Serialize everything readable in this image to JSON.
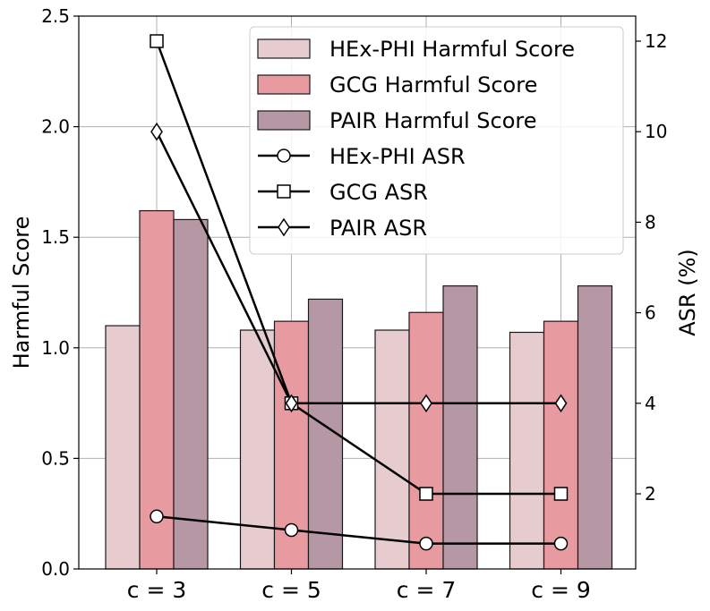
{
  "chart_data": {
    "type": "bar+line",
    "categories": [
      "c = 3",
      "c = 5",
      "c = 7",
      "c = 9"
    ],
    "bar_series": [
      {
        "name": "HEx-PHI Harmful Score",
        "values": [
          1.1,
          1.08,
          1.08,
          1.07
        ],
        "color": "#e6cccf"
      },
      {
        "name": "GCG Harmful Score",
        "values": [
          1.62,
          1.12,
          1.16,
          1.12
        ],
        "color": "#e79a9f"
      },
      {
        "name": "PAIR Harmful Score",
        "values": [
          1.58,
          1.22,
          1.28,
          1.28
        ],
        "color": "#b698a5"
      }
    ],
    "line_series": [
      {
        "name": "HEx-PHI ASR",
        "marker": "circle",
        "values": [
          1.5,
          1.2,
          0.9,
          0.9
        ]
      },
      {
        "name": "GCG ASR",
        "marker": "square",
        "values": [
          12.0,
          4.0,
          2.0,
          2.0
        ]
      },
      {
        "name": "PAIR ASR",
        "marker": "diamond",
        "values": [
          10.0,
          4.0,
          4.0,
          4.0
        ]
      }
    ],
    "ylabel": "Harmful Score",
    "y2label": "ASR (%)",
    "ylim": [
      0,
      2.5
    ],
    "y2lim": [
      0.3,
      12.5
    ],
    "yticks": [
      "0.0",
      "0.5",
      "1.0",
      "1.5",
      "2.0",
      "2.5"
    ],
    "y2ticks": [
      "2",
      "4",
      "6",
      "8",
      "10",
      "12"
    ],
    "grid": true,
    "legend_position": "top-right"
  }
}
